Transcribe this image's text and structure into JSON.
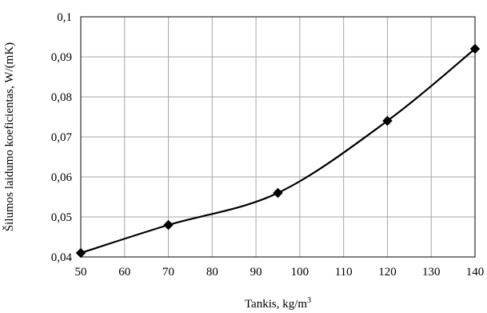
{
  "chart_data": {
    "type": "line",
    "x": [
      50,
      70,
      95,
      120,
      140
    ],
    "series": [
      {
        "values": [
          0.041,
          0.048,
          0.056,
          0.074,
          0.092
        ]
      }
    ],
    "xlabel": "Tankis, kg/m",
    "xlabel_superscript": "3",
    "ylabel": "Šilumos laidumo koeficientas, W/(mK)",
    "xlim": [
      50,
      140
    ],
    "ylim": [
      0.04,
      0.1
    ],
    "x_ticks": [
      50,
      60,
      70,
      80,
      90,
      100,
      110,
      120,
      130,
      140
    ],
    "x_tick_labels": [
      "50",
      "60",
      "70",
      "80",
      "90",
      "100",
      "110",
      "120",
      "130",
      "140"
    ],
    "y_ticks": [
      0.04,
      0.05,
      0.06,
      0.07,
      0.08,
      0.09,
      0.1
    ],
    "y_tick_labels": [
      "0,04",
      "0,05",
      "0,06",
      "0,07",
      "0,08",
      "0,09",
      "0,1"
    ],
    "grid": true,
    "line_style": "smooth",
    "marker": "diamond",
    "line_color": "#000000",
    "grid_color": "#a6a6a6"
  }
}
